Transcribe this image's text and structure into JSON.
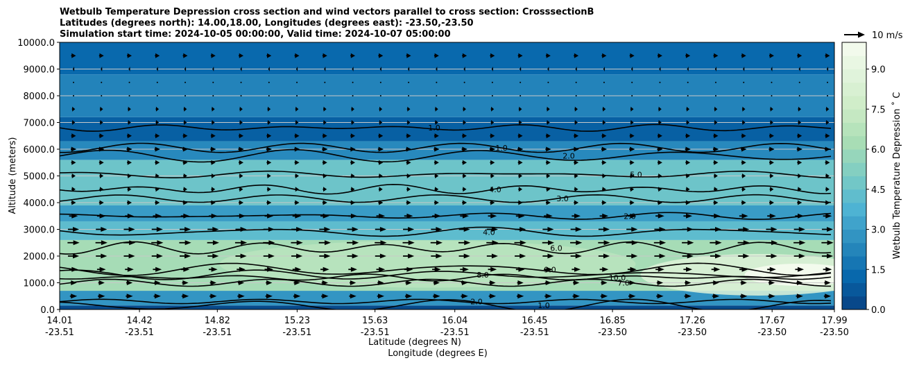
{
  "chart_data": {
    "type": "heatmap",
    "title_lines": [
      "Wetbulb Temperature Depression cross section and wind vectors parallel to cross section: CrosssectionB",
      "Latitudes (degrees north): 14.00,18.00, Longitudes (degrees east): -23.50,-23.50",
      "Simulation start time: 2024-10-05 00:00:00, Valid time: 2024-10-07 05:00:00"
    ],
    "xlabel_lines": [
      "Latitude (degrees N)",
      "Longitude (degrees E)"
    ],
    "ylabel": "Altitude (meters)",
    "ylim": [
      0,
      10000
    ],
    "xlim": [
      14.01,
      17.99
    ],
    "y_ticks": [
      "0.0",
      "1000.0",
      "2000.0",
      "3000.0",
      "4000.0",
      "5000.0",
      "6000.0",
      "7000.0",
      "8000.0",
      "9000.0",
      "10000.0"
    ],
    "y_tick_values": [
      0,
      1000,
      2000,
      3000,
      4000,
      5000,
      6000,
      7000,
      8000,
      9000,
      10000
    ],
    "x_ticks": [
      {
        "lat": "14.01",
        "lon": "-23.51"
      },
      {
        "lat": "14.42",
        "lon": "-23.51"
      },
      {
        "lat": "14.82",
        "lon": "-23.51"
      },
      {
        "lat": "15.23",
        "lon": "-23.51"
      },
      {
        "lat": "15.63",
        "lon": "-23.51"
      },
      {
        "lat": "16.04",
        "lon": "-23.51"
      },
      {
        "lat": "16.45",
        "lon": "-23.51"
      },
      {
        "lat": "16.85",
        "lon": "-23.50"
      },
      {
        "lat": "17.26",
        "lon": "-23.50"
      },
      {
        "lat": "17.67",
        "lon": "-23.50"
      },
      {
        "lat": "17.99",
        "lon": "-23.50"
      }
    ],
    "x_tick_values": [
      14.01,
      14.42,
      14.82,
      15.23,
      15.63,
      16.04,
      16.45,
      16.85,
      17.26,
      17.67,
      17.99
    ],
    "colorbar": {
      "label": "Wetbulb Temperature Depression $^\\circ$C",
      "label_display": "Wetbulb Temperature Depression ˚ C",
      "min": 0,
      "max": 10,
      "ticks": [
        "0.0",
        "1.5",
        "3.0",
        "4.5",
        "6.0",
        "7.5",
        "9.0"
      ],
      "tick_values": [
        0,
        1.5,
        3.0,
        4.5,
        6.0,
        7.5,
        9.0
      ],
      "colors": [
        "#084081",
        "#0868ac",
        "#2b8cbe",
        "#4eb3d3",
        "#7bccc4",
        "#a8ddb5",
        "#ccebc5",
        "#e0f3db",
        "#f7fcf0"
      ]
    },
    "wind_key": {
      "label": "10 m/s",
      "speed": 10
    },
    "bands": [
      {
        "y0": 0,
        "y1": 150,
        "value": 0.3
      },
      {
        "y0": 150,
        "y1": 700,
        "value": 2.8
      },
      {
        "y0": 700,
        "y1": 2600,
        "value": 6.2
      },
      {
        "y0": 2600,
        "y1": 3300,
        "value": 4.2
      },
      {
        "y0": 3300,
        "y1": 3900,
        "value": 3.0
      },
      {
        "y0": 3900,
        "y1": 5600,
        "value": 4.6
      },
      {
        "y0": 5600,
        "y1": 6300,
        "value": 2.4
      },
      {
        "y0": 6300,
        "y1": 7200,
        "value": 1.0
      },
      {
        "y0": 7200,
        "y1": 8800,
        "value": 2.2
      },
      {
        "y0": 8800,
        "y1": 10000,
        "value": 1.3
      }
    ],
    "warm_core": {
      "lat": 17.6,
      "alt": 1300,
      "value": 9.8
    },
    "contours": [
      {
        "level": "1.0",
        "alt": 6800
      },
      {
        "level": "1.0",
        "alt": 6050
      },
      {
        "level": "2.0",
        "alt": 5750
      },
      {
        "level": "5.0",
        "alt": 5050
      },
      {
        "level": "4.0",
        "alt": 4500
      },
      {
        "level": "3.0",
        "alt": 4150
      },
      {
        "level": "2.0",
        "alt": 3500
      },
      {
        "level": "4.0",
        "alt": 2900
      },
      {
        "level": "6.0",
        "alt": 2300
      },
      {
        "level": "7.0",
        "alt": 1000
      },
      {
        "level": "8.0",
        "alt": 1300
      },
      {
        "level": "9.0",
        "alt": 1500
      },
      {
        "level": "10.0",
        "alt": 1200
      },
      {
        "level": "2.0",
        "alt": 300
      },
      {
        "level": "1.0",
        "alt": 150
      }
    ],
    "contour_label_values": [
      "1.0",
      "2.0",
      "3.0",
      "4.0",
      "5.0",
      "6.0",
      "7.0",
      "8.0",
      "9.0",
      "10.0"
    ],
    "wind_profile": [
      {
        "alt": 500,
        "u": 4.5
      },
      {
        "alt": 1000,
        "u": 4.0
      },
      {
        "alt": 1500,
        "u": 5.5
      },
      {
        "alt": 2000,
        "u": 7.0
      },
      {
        "alt": 2500,
        "u": 7.5
      },
      {
        "alt": 3000,
        "u": 7.0
      },
      {
        "alt": 3500,
        "u": 5.5
      },
      {
        "alt": 4000,
        "u": 3.0
      },
      {
        "alt": 4500,
        "u": 2.5
      },
      {
        "alt": 5000,
        "u": 2.5
      },
      {
        "alt": 5500,
        "u": 3.0
      },
      {
        "alt": 6000,
        "u": 3.5
      },
      {
        "alt": 6500,
        "u": 3.0
      },
      {
        "alt": 7000,
        "u": 2.0
      },
      {
        "alt": 7500,
        "u": 2.0
      },
      {
        "alt": 8000,
        "u": 0.5
      },
      {
        "alt": 8500,
        "u": 0.0
      },
      {
        "alt": 9000,
        "u": -1.0
      },
      {
        "alt": 9500,
        "u": 3.0
      }
    ]
  }
}
